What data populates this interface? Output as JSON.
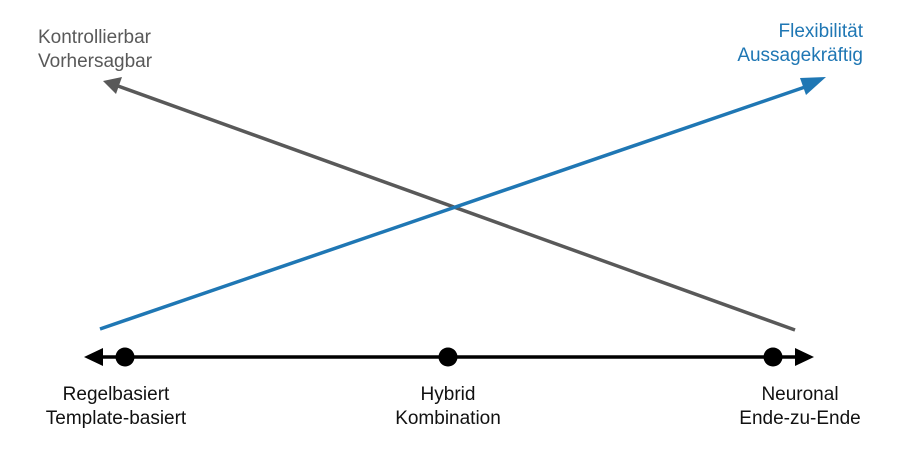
{
  "colors": {
    "gray_line": "#595959",
    "blue_line": "#1f77b4",
    "axis": "#000000"
  },
  "trend_labels": {
    "decreasing": {
      "line1": "Kontrollierbar",
      "line2": "Vorhersagbar"
    },
    "increasing": {
      "line1": "Flexibilität",
      "line2": "Aussagekräftig"
    }
  },
  "axis_points": [
    {
      "line1": "Regelbasiert",
      "line2": "Template-basiert"
    },
    {
      "line1": "Hybrid",
      "line2": "Kombination"
    },
    {
      "line1": "Neuronal",
      "line2": "Ende-zu-Ende"
    }
  ]
}
